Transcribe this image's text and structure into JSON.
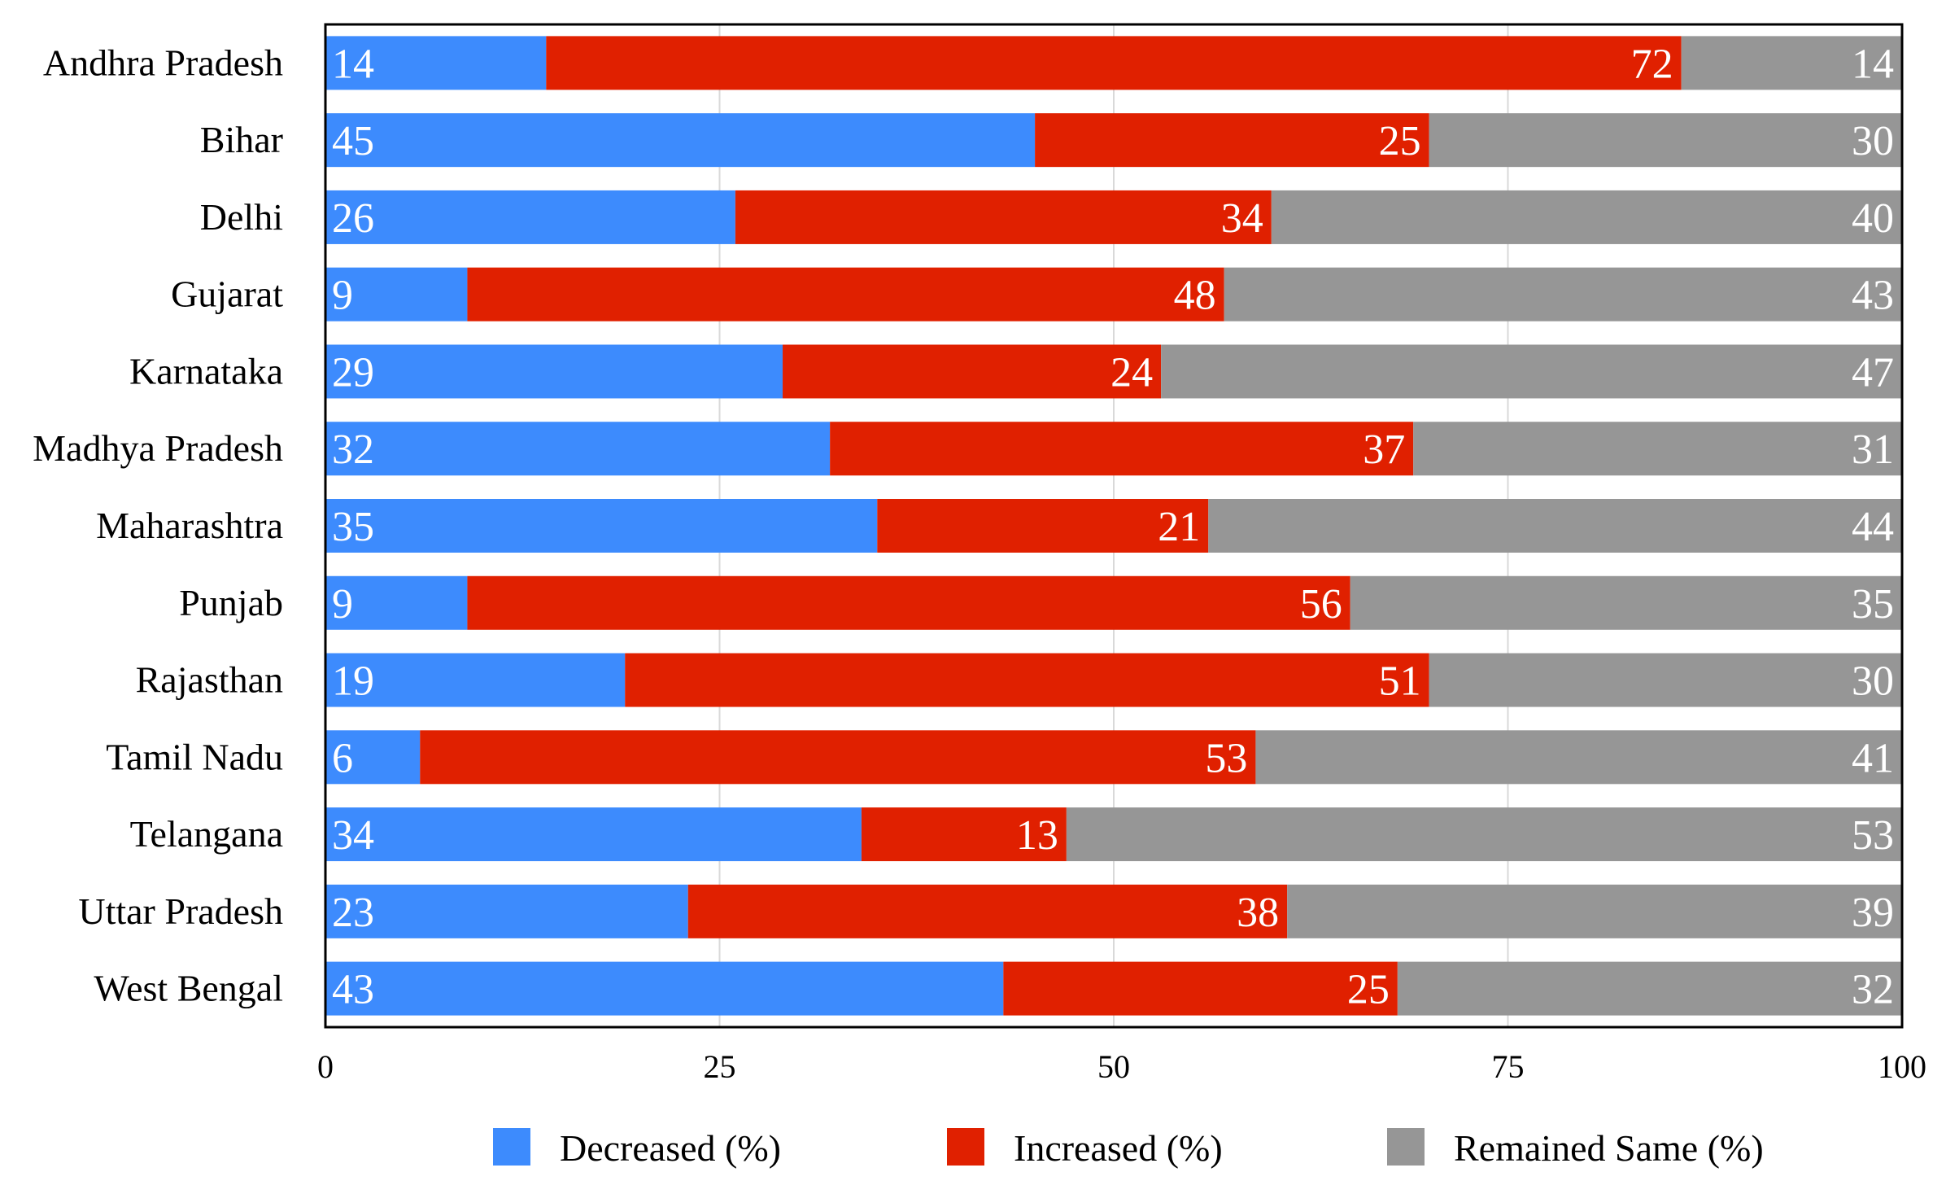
{
  "chart_data": {
    "type": "bar",
    "orientation": "horizontal",
    "stacked": true,
    "title": "",
    "xlabel": "",
    "ylabel": "",
    "xlim": [
      0,
      100
    ],
    "x_ticks": [
      0,
      25,
      50,
      75,
      100
    ],
    "grid": true,
    "legend_position": "bottom",
    "categories": [
      "Andhra Pradesh",
      "Bihar",
      "Delhi",
      "Gujarat",
      "Karnataka",
      "Madhya Pradesh",
      "Maharashtra",
      "Punjab",
      "Rajasthan",
      "Tamil Nadu",
      "Telangana",
      "Uttar Pradesh",
      "West Bengal"
    ],
    "series": [
      {
        "name": "Decreased (%)",
        "color": "#3d8bfd",
        "values": [
          14,
          45,
          26,
          9,
          29,
          32,
          35,
          9,
          19,
          6,
          34,
          23,
          43
        ]
      },
      {
        "name": "Increased (%)",
        "color": "#e02000",
        "values": [
          72,
          25,
          34,
          48,
          24,
          37,
          21,
          56,
          51,
          53,
          13,
          38,
          25
        ]
      },
      {
        "name": "Remained Same (%)",
        "color": "#969696",
        "values": [
          14,
          30,
          40,
          43,
          47,
          31,
          44,
          35,
          30,
          41,
          53,
          39,
          32
        ]
      }
    ]
  }
}
